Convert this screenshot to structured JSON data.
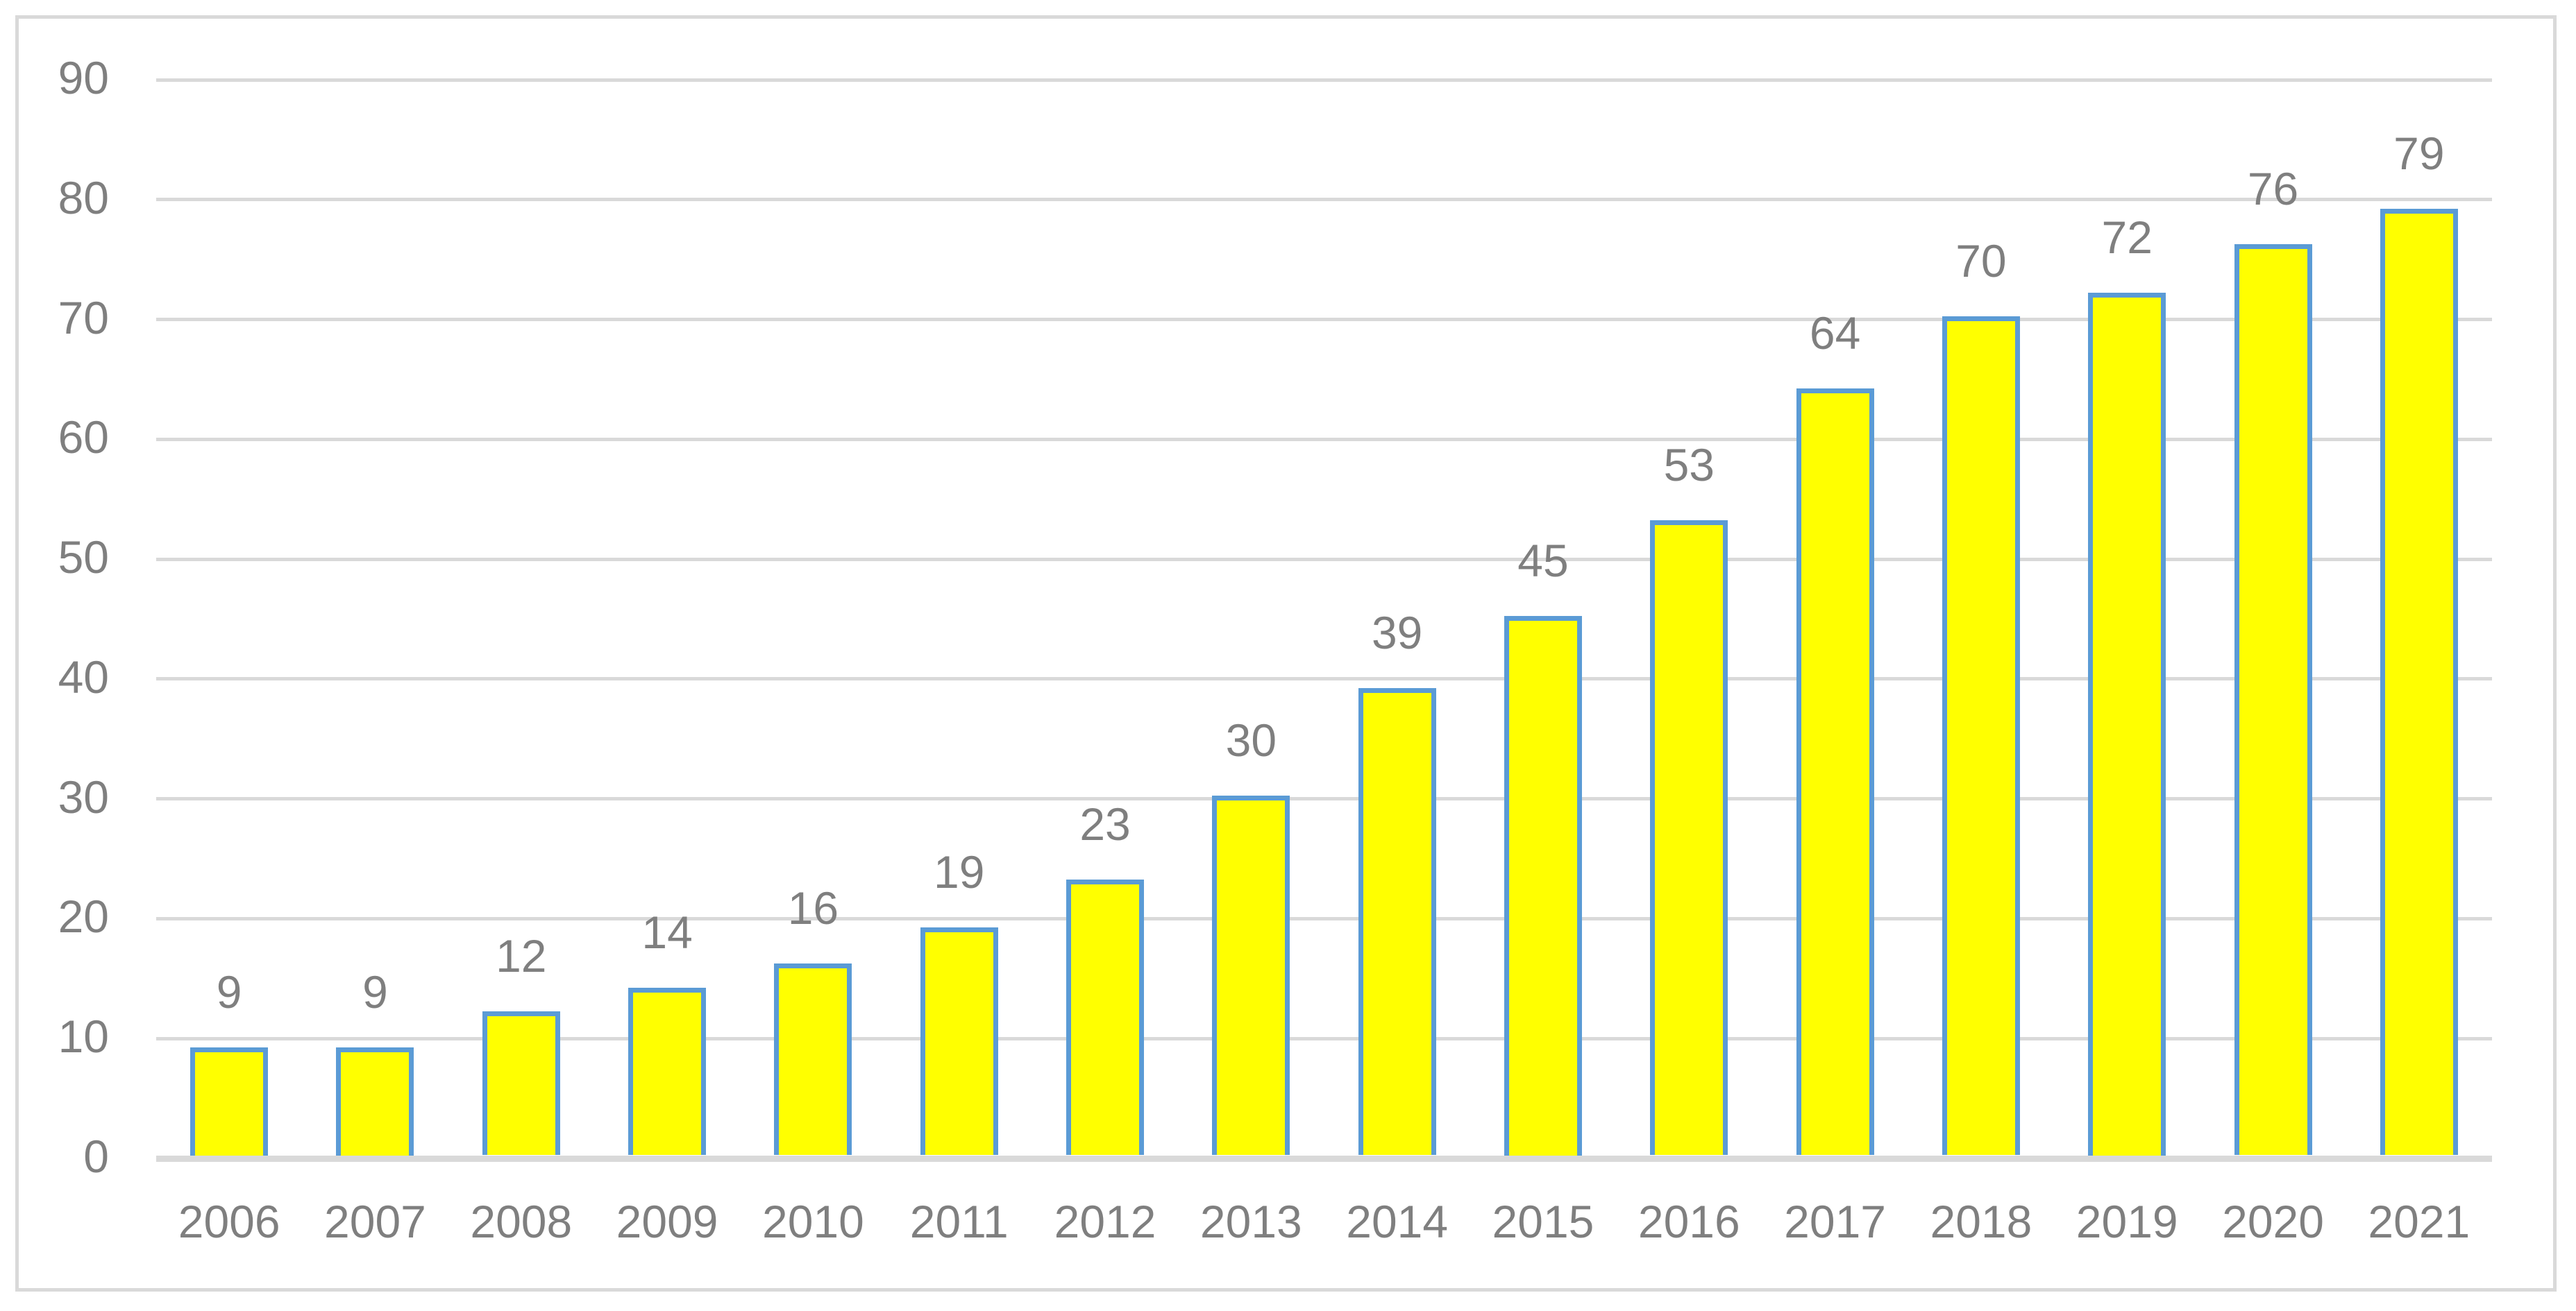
{
  "chart_data": {
    "type": "bar",
    "title": "",
    "xlabel": "",
    "ylabel": "",
    "categories": [
      "2006",
      "2007",
      "2008",
      "2009",
      "2010",
      "2011",
      "2012",
      "2013",
      "2014",
      "2015",
      "2016",
      "2017",
      "2018",
      "2019",
      "2020",
      "2021"
    ],
    "values": [
      9,
      9,
      12,
      14,
      16,
      19,
      23,
      30,
      39,
      45,
      53,
      64,
      70,
      72,
      76,
      79
    ],
    "data_labels": [
      "9",
      "9",
      "12",
      "14",
      "16",
      "19",
      "23",
      "30",
      "39",
      "45",
      "53",
      "64",
      "70",
      "72",
      "76",
      "79"
    ],
    "ylim": [
      0,
      90
    ],
    "ytick_interval": 10,
    "yticks": [
      "0",
      "10",
      "20",
      "30",
      "40",
      "50",
      "60",
      "70",
      "80",
      "90"
    ],
    "grid": true,
    "legend_position": "none"
  },
  "style": {
    "bar_fill": "#FFFF00",
    "bar_border": "#5B9BD5",
    "gridline_color": "#D9D9D9",
    "axis_line_color": "#D9D9D9",
    "figure_border_color": "#D9D9D9",
    "label_color": "#7F7F7F",
    "background": "#FFFFFF"
  }
}
